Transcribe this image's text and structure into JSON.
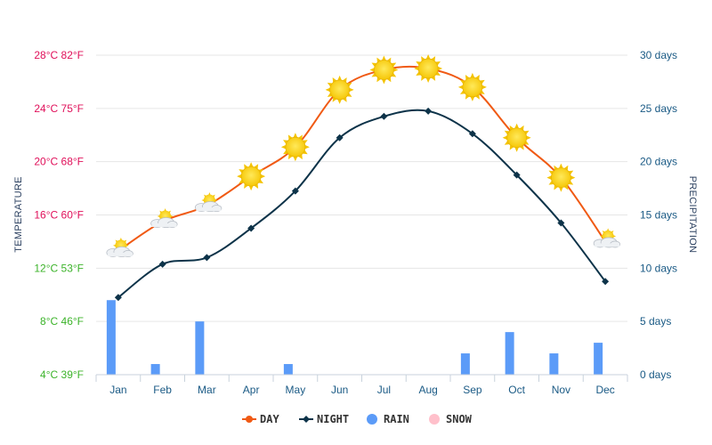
{
  "chart_data": {
    "type": "line",
    "categories": [
      "Jan",
      "Feb",
      "Mar",
      "Apr",
      "May",
      "Jun",
      "Jul",
      "Aug",
      "Sep",
      "Oct",
      "Nov",
      "Dec"
    ],
    "series": [
      {
        "name": "DAY",
        "type": "line",
        "axis": "temperature",
        "color": "#f05a14",
        "marker": "circle",
        "values": [
          13.3,
          15.5,
          16.7,
          18.9,
          21.1,
          25.4,
          26.9,
          27.0,
          25.6,
          21.8,
          18.8,
          14.0
        ]
      },
      {
        "name": "NIGHT",
        "type": "line",
        "axis": "temperature",
        "color": "#0d3349",
        "marker": "diamond",
        "values": [
          9.8,
          12.3,
          12.8,
          15.0,
          17.8,
          21.8,
          23.4,
          23.8,
          22.1,
          19.0,
          15.4,
          11.0
        ]
      },
      {
        "name": "RAIN",
        "type": "bar",
        "axis": "precipitation",
        "color": "#5b9bf8",
        "values": [
          7,
          1,
          5,
          0,
          1,
          0,
          0,
          0,
          2,
          4,
          2,
          3
        ]
      },
      {
        "name": "SNOW",
        "type": "bar",
        "axis": "precipitation",
        "color": "#ffc0cb",
        "values": [
          0,
          0,
          0,
          0,
          0,
          0,
          0,
          0,
          0,
          0,
          0,
          0
        ]
      }
    ],
    "weather_icons": [
      "sun-cloud-icon",
      "sun-cloud-icon",
      "sun-cloud-icon",
      "sun-icon",
      "sun-icon",
      "sun-icon",
      "sun-icon",
      "sun-icon",
      "sun-icon",
      "sun-icon",
      "sun-icon",
      "sun-cloud-icon"
    ],
    "y_left": {
      "title": "TEMPERATURE",
      "range": [
        4,
        28
      ],
      "ticks": [
        {
          "value": 28,
          "label": "28°C 82°F",
          "color": "#e0105a"
        },
        {
          "value": 24,
          "label": "24°C 75°F",
          "color": "#e0105a"
        },
        {
          "value": 20,
          "label": "20°C 68°F",
          "color": "#e0105a"
        },
        {
          "value": 16,
          "label": "16°C 60°F",
          "color": "#e0105a"
        },
        {
          "value": 12,
          "label": "12°C 53°F",
          "color": "#3cb32a"
        },
        {
          "value": 8,
          "label": "8°C 46°F",
          "color": "#3cb32a"
        },
        {
          "value": 4,
          "label": "4°C 39°F",
          "color": "#3cb32a"
        }
      ]
    },
    "y_right": {
      "title": "PRECIPITATION",
      "range": [
        0,
        30
      ],
      "ticks": [
        {
          "value": 30,
          "label": "30 days"
        },
        {
          "value": 25,
          "label": "25 days"
        },
        {
          "value": 20,
          "label": "20 days"
        },
        {
          "value": 15,
          "label": "15 days"
        },
        {
          "value": 10,
          "label": "10 days"
        },
        {
          "value": 5,
          "label": "5 days"
        },
        {
          "value": 0,
          "label": "0 days"
        }
      ],
      "color": "#1a5a85"
    },
    "grid": true,
    "legend_position": "bottom-center"
  }
}
